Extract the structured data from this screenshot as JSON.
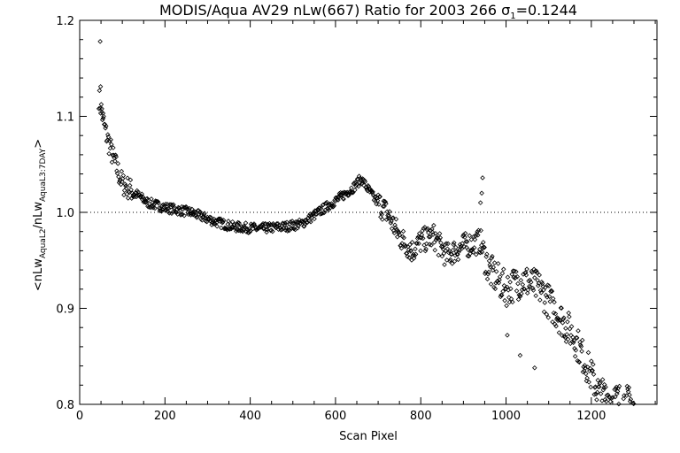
{
  "chart_data": {
    "type": "scatter",
    "title_main": "MODIS/Aqua AV29 nLw(667) Ratio for 2003 266 ",
    "title_sigma": "σ",
    "title_sigma_sub": "1",
    "title_sigma_value": "=0.1244",
    "xlabel": "Scan Pixel",
    "ylabel_parts": {
      "open": "<nLw",
      "sub1": "AquaL2",
      "mid": "/nLw",
      "sub2": "AquaL3:7DAY",
      "close": ">"
    },
    "xlim": [
      0,
      1354
    ],
    "ylim": [
      0.8,
      1.2
    ],
    "xticks": [
      0,
      200,
      400,
      600,
      800,
      1000,
      1200
    ],
    "xtick_labels": [
      "0",
      "200",
      "400",
      "600",
      "800",
      "1000",
      "1200"
    ],
    "yticks": [
      0.8,
      0.9,
      1.0,
      1.1,
      1.2
    ],
    "ytick_labels": [
      "0.8",
      "0.9",
      "1.0",
      "1.1",
      "1.2"
    ],
    "reference_line": 1.0,
    "marker": "diamond",
    "trend": [
      [
        45,
        1.12
      ],
      [
        60,
        1.085
      ],
      [
        80,
        1.055
      ],
      [
        100,
        1.03
      ],
      [
        130,
        1.02
      ],
      [
        160,
        1.01
      ],
      [
        200,
        1.005
      ],
      [
        260,
        1.0
      ],
      [
        320,
        0.99
      ],
      [
        360,
        0.985
      ],
      [
        420,
        0.983
      ],
      [
        480,
        0.985
      ],
      [
        520,
        0.988
      ],
      [
        560,
        1.0
      ],
      [
        600,
        1.012
      ],
      [
        640,
        1.025
      ],
      [
        660,
        1.035
      ],
      [
        690,
        1.015
      ],
      [
        720,
        1.0
      ],
      [
        750,
        0.975
      ],
      [
        780,
        0.96
      ],
      [
        800,
        0.97
      ],
      [
        830,
        0.975
      ],
      [
        860,
        0.955
      ],
      [
        900,
        0.965
      ],
      [
        940,
        0.97
      ],
      [
        960,
        0.94
      ],
      [
        1000,
        0.92
      ],
      [
        1040,
        0.93
      ],
      [
        1080,
        0.92
      ],
      [
        1120,
        0.895
      ],
      [
        1160,
        0.87
      ],
      [
        1200,
        0.83
      ],
      [
        1220,
        0.81
      ],
      [
        1260,
        0.805
      ],
      [
        1300,
        0.8
      ]
    ],
    "outliers": [
      [
        48,
        1.178
      ],
      [
        49,
        1.131
      ],
      [
        52,
        1.108
      ],
      [
        55,
        1.098
      ],
      [
        945,
        1.036
      ],
      [
        943,
        1.02
      ],
      [
        940,
        1.01
      ],
      [
        1033,
        0.851
      ],
      [
        1067,
        0.838
      ],
      [
        1003,
        0.872
      ]
    ]
  }
}
